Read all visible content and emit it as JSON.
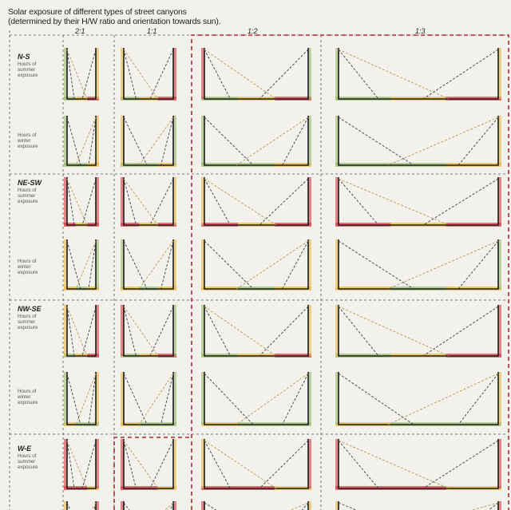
{
  "title": {
    "line1": "Solar exposure of different types of street canyons",
    "line2": "(determined by their H/W ratio and orientation towards sun)."
  },
  "ratios": [
    "2:1",
    "1:1",
    "1:2",
    "1:3"
  ],
  "orientations": [
    {
      "name": "N-S",
      "summer": "Hours of summer exposure",
      "winter": "Hours of winter exposure"
    },
    {
      "name": "NE-SW",
      "summer": "Hours of summer exposure",
      "winter": "Hours of winter exposure"
    },
    {
      "name": "NW-SE",
      "summer": "Hours of summer exposure",
      "winter": "Hours of winter exposure"
    },
    {
      "name": "W-E",
      "summer": "Hours of summer exposure",
      "winter": ""
    }
  ],
  "legend_colors": {
    "high": "#d8404a",
    "medium": "#e9b94a",
    "low": "#9cbd72"
  }
}
